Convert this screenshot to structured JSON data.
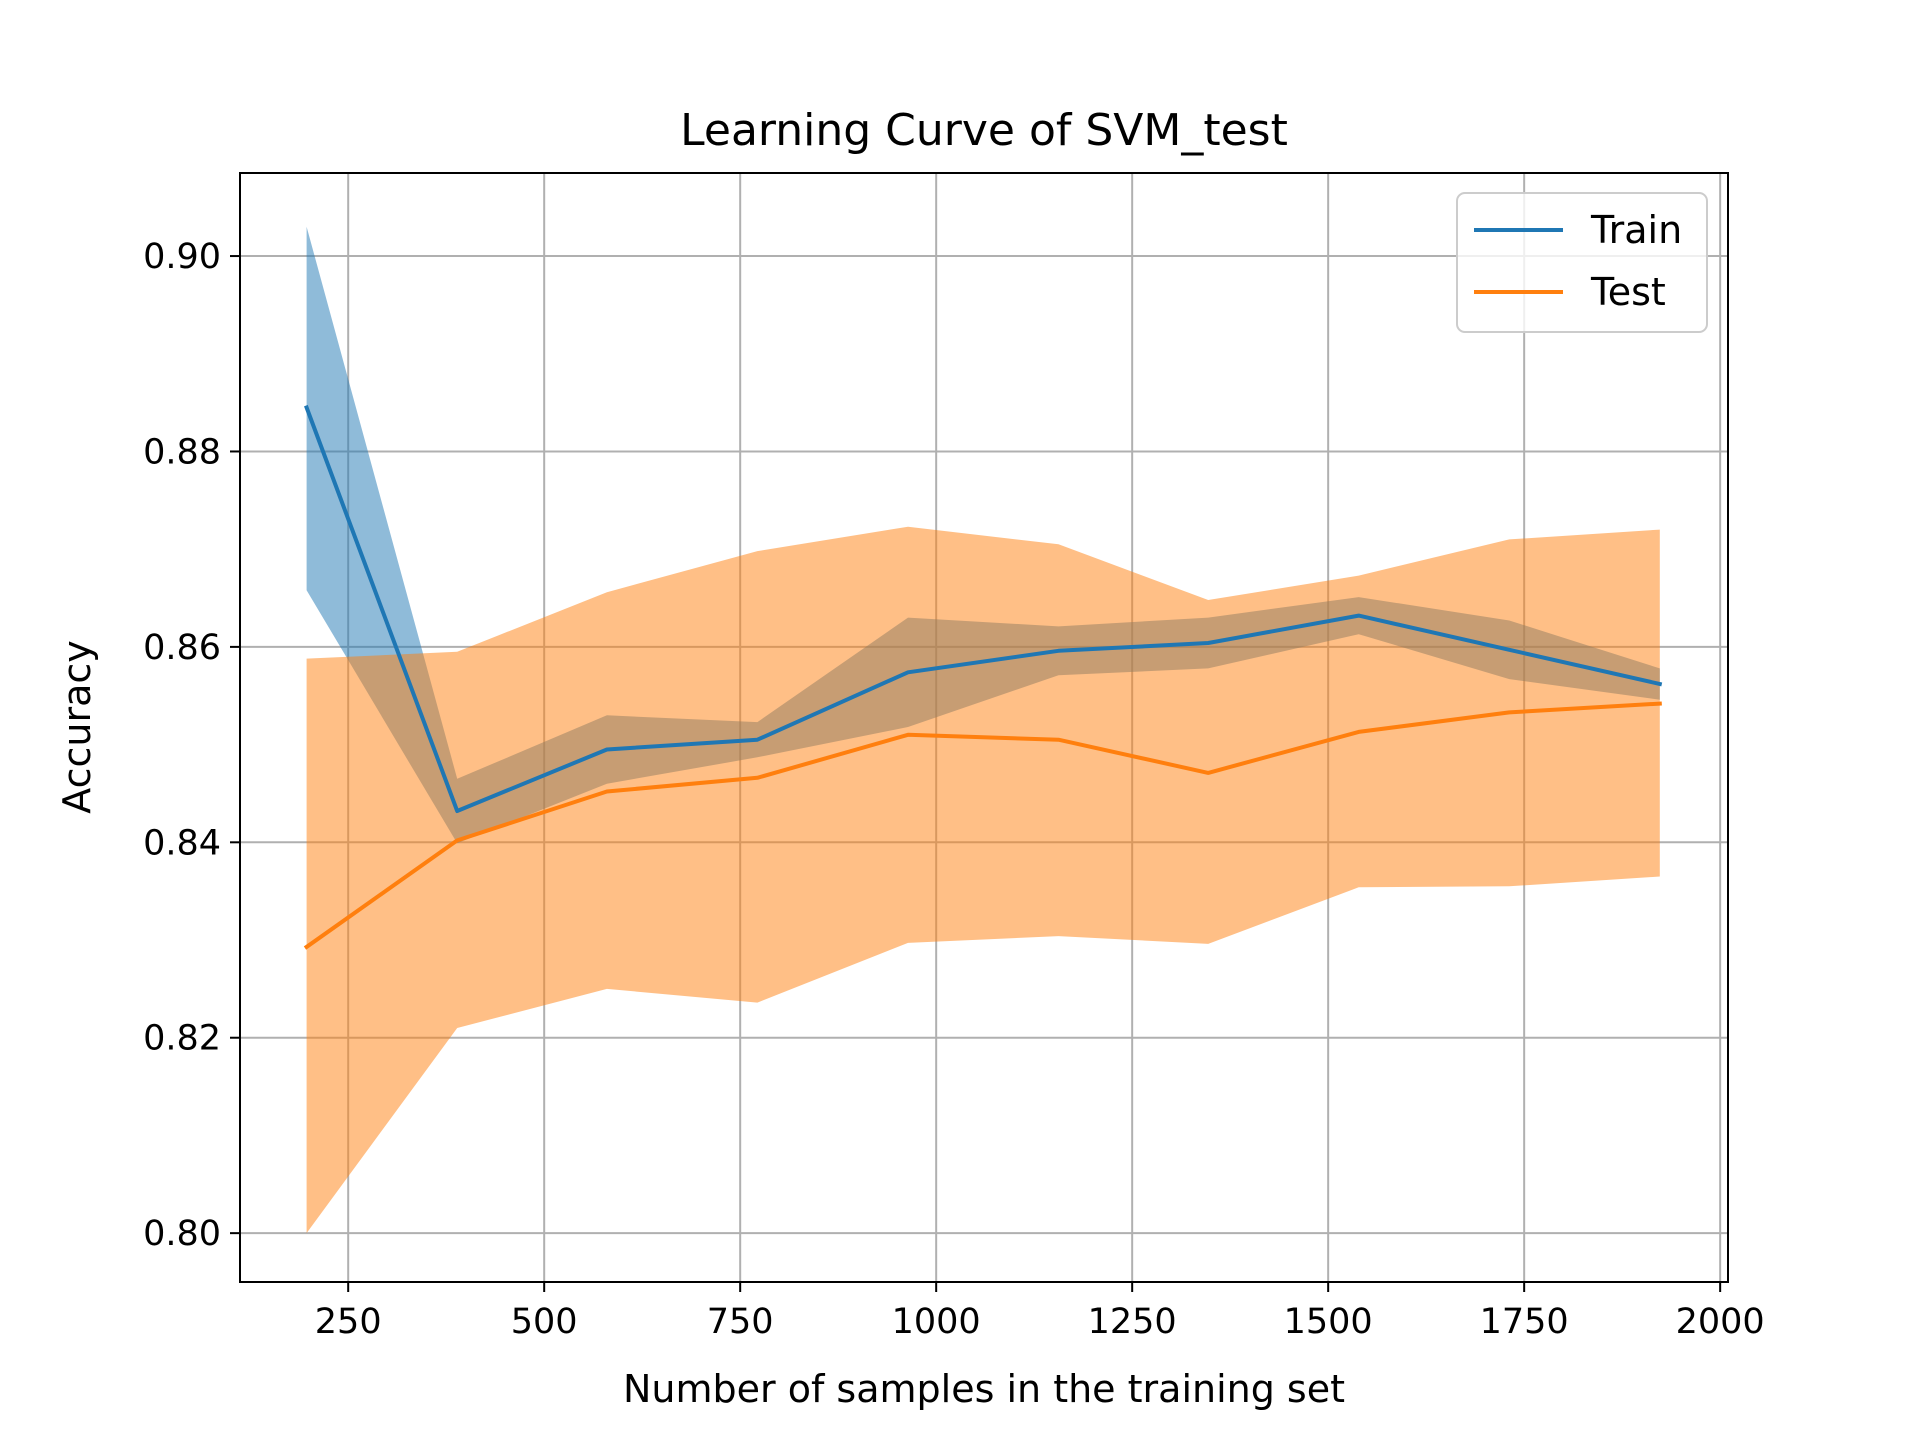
{
  "chart_data": {
    "type": "line",
    "title": "Learning Curve of SVM_test",
    "xlabel": "Number of samples in the training set",
    "ylabel": "Accuracy",
    "xlim": [
      112,
      2010
    ],
    "ylim": [
      0.795,
      0.9085
    ],
    "xticks": [
      250,
      500,
      750,
      1000,
      1250,
      1500,
      1750,
      2000
    ],
    "yticks": [
      0.8,
      0.82,
      0.84,
      0.86,
      0.88,
      0.9
    ],
    "xtick_labels": [
      "250",
      "500",
      "750",
      "1000",
      "1250",
      "1500",
      "1750",
      "2000"
    ],
    "ytick_labels": [
      "0.80",
      "0.82",
      "0.84",
      "0.86",
      "0.88",
      "0.90"
    ],
    "grid": true,
    "legend_position": "top-right",
    "x": [
      197,
      389,
      580,
      772,
      964,
      1156,
      1347,
      1539,
      1731,
      1923
    ],
    "series": [
      {
        "name": "Train",
        "color": "#1f77b4",
        "values": [
          0.8845,
          0.8432,
          0.8495,
          0.8505,
          0.8574,
          0.8596,
          0.8604,
          0.8632,
          0.8597,
          0.8562
        ],
        "band_upper": [
          0.903,
          0.8465,
          0.853,
          0.8523,
          0.863,
          0.8621,
          0.863,
          0.8651,
          0.8627,
          0.8578
        ],
        "band_lower": [
          0.8658,
          0.8399,
          0.846,
          0.8487,
          0.8518,
          0.8571,
          0.8578,
          0.8613,
          0.8567,
          0.8546
        ],
        "band_color": "#1f77b4",
        "band_opacity": 0.5
      },
      {
        "name": "Test",
        "color": "#ff7f0e",
        "values": [
          0.8293,
          0.8402,
          0.8452,
          0.8466,
          0.851,
          0.8505,
          0.8471,
          0.8513,
          0.8533,
          0.8542
        ],
        "band_upper": [
          0.8588,
          0.8595,
          0.8656,
          0.8698,
          0.8723,
          0.8705,
          0.8648,
          0.8673,
          0.871,
          0.872
        ],
        "band_lower": [
          0.8,
          0.821,
          0.825,
          0.8236,
          0.8297,
          0.8304,
          0.8296,
          0.8354,
          0.8355,
          0.8365
        ],
        "band_color": "#ff7f0e",
        "band_opacity": 0.5
      }
    ]
  }
}
